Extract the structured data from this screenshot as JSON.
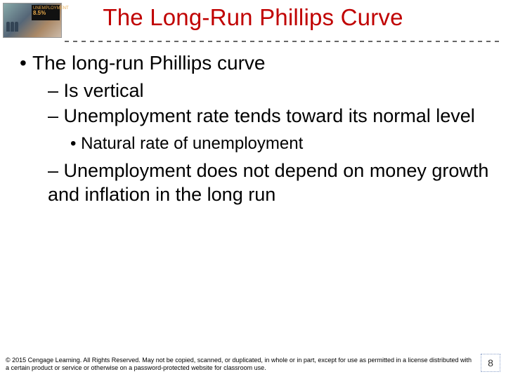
{
  "title": "The Long-Run Phillips Curve",
  "title_color": "#c00000",
  "dot_color": "#666666",
  "body": {
    "lvl1": "The long-run Phillips curve",
    "lvl2_a": "– Is vertical",
    "lvl2_b": "– Unemployment rate tends toward its normal level",
    "lvl3_a": "• Natural rate of unemployment",
    "lvl2_c": "– Unemployment does not depend on money growth and inflation in the long run"
  },
  "thumb_sign_top": "UNEMPLOYMENT",
  "thumb_sign_val": "8.5%",
  "copyright": "© 2015 Cengage Learning. All Rights Reserved. May not be copied, scanned, or duplicated, in whole or in part, except for use as permitted in a license distributed with a certain product or service or otherwise on a password-protected website for classroom use.",
  "page_number": "8",
  "font_sizes": {
    "title": 33,
    "lvl1": 28,
    "lvl2": 27,
    "lvl3": 24,
    "copyright": 9,
    "pagenum": 14
  }
}
